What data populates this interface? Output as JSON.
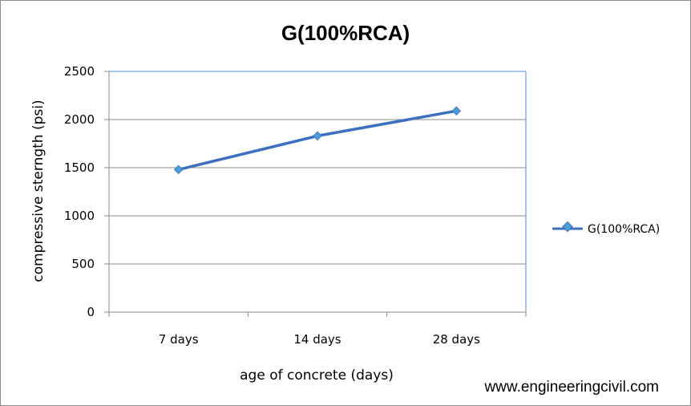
{
  "chart_data": {
    "type": "line",
    "title": "G(100%RCA)",
    "xlabel": "age of concrete (days)",
    "ylabel": "compressive sterngth (psi)",
    "categories": [
      "7 days",
      "14 days",
      "28 days"
    ],
    "series": [
      {
        "name": "G(100%RCA)",
        "values": [
          1480,
          1830,
          2090
        ],
        "color": "#3d6fc0",
        "marker_color": "#4a9fd8"
      }
    ],
    "ylim": [
      0,
      2500
    ],
    "yticks": [
      0,
      500,
      1000,
      1500,
      2000,
      2500
    ],
    "grid": true,
    "legend": "right"
  },
  "watermark": "www.engineeringcivil.com"
}
